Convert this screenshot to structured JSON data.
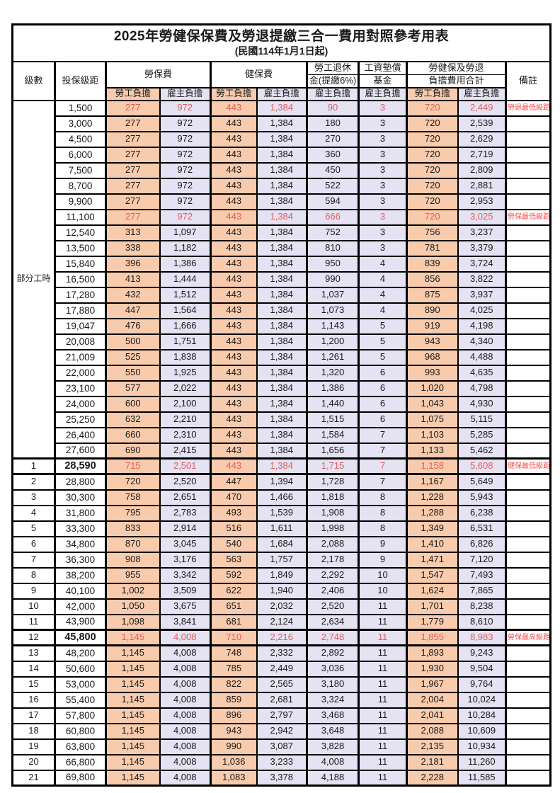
{
  "title": "2025年勞健保保費及勞退提繳三合一費用對照參考用表",
  "subtitle": "(民國114年1月1日起)",
  "columns": {
    "level": "級數",
    "bracket": "投保級距",
    "labor_insurance": "勞保費",
    "health_insurance": "健保費",
    "pension_line1": "勞工退休",
    "pension_line2": "金(提繳6%)",
    "wage_arrears_line1": "工資墊償",
    "wage_arrears_line2": "基金",
    "total_line1": "勞健保及勞退",
    "total_line2": "負擔費用合計",
    "remark": "備註",
    "employee_share": "勞工負擔",
    "employer_share": "雇主負擔"
  },
  "part_time_group": {
    "label": "部分工時",
    "row_span": 23
  },
  "colors": {
    "employee_bg": "#F8CBAD",
    "employer_bg": "#E4E2F3",
    "highlight_text": "#E0605E",
    "remark_text": "#F24E4E",
    "border": "#000000"
  },
  "rows": [
    {
      "level": "",
      "bracket": "1,500",
      "values": [
        "277",
        "972",
        "443",
        "1,384",
        "90",
        "3",
        "720",
        "2,449"
      ],
      "remark": "勞退最低級距",
      "highlight": true,
      "emphasis": false
    },
    {
      "level": "",
      "bracket": "3,000",
      "values": [
        "277",
        "972",
        "443",
        "1,384",
        "180",
        "3",
        "720",
        "2,539"
      ],
      "remark": "",
      "highlight": false,
      "emphasis": false
    },
    {
      "level": "",
      "bracket": "4,500",
      "values": [
        "277",
        "972",
        "443",
        "1,384",
        "270",
        "3",
        "720",
        "2,629"
      ],
      "remark": "",
      "highlight": false,
      "emphasis": false
    },
    {
      "level": "",
      "bracket": "6,000",
      "values": [
        "277",
        "972",
        "443",
        "1,384",
        "360",
        "3",
        "720",
        "2,719"
      ],
      "remark": "",
      "highlight": false,
      "emphasis": false
    },
    {
      "level": "",
      "bracket": "7,500",
      "values": [
        "277",
        "972",
        "443",
        "1,384",
        "450",
        "3",
        "720",
        "2,809"
      ],
      "remark": "",
      "highlight": false,
      "emphasis": false
    },
    {
      "level": "",
      "bracket": "8,700",
      "values": [
        "277",
        "972",
        "443",
        "1,384",
        "522",
        "3",
        "720",
        "2,881"
      ],
      "remark": "",
      "highlight": false,
      "emphasis": false
    },
    {
      "level": "",
      "bracket": "9,900",
      "values": [
        "277",
        "972",
        "443",
        "1,384",
        "594",
        "3",
        "720",
        "2,953"
      ],
      "remark": "",
      "highlight": false,
      "emphasis": false
    },
    {
      "level": "",
      "bracket": "11,100",
      "values": [
        "277",
        "972",
        "443",
        "1,384",
        "666",
        "3",
        "720",
        "3,025"
      ],
      "remark": "勞保最低級距",
      "highlight": true,
      "emphasis": false
    },
    {
      "level": "",
      "bracket": "12,540",
      "values": [
        "313",
        "1,097",
        "443",
        "1,384",
        "752",
        "3",
        "756",
        "3,237"
      ],
      "remark": "",
      "highlight": false,
      "emphasis": false
    },
    {
      "level": "",
      "bracket": "13,500",
      "values": [
        "338",
        "1,182",
        "443",
        "1,384",
        "810",
        "3",
        "781",
        "3,379"
      ],
      "remark": "",
      "highlight": false,
      "emphasis": false
    },
    {
      "level": "",
      "bracket": "15,840",
      "values": [
        "396",
        "1,386",
        "443",
        "1,384",
        "950",
        "4",
        "839",
        "3,724"
      ],
      "remark": "",
      "highlight": false,
      "emphasis": false
    },
    {
      "level": "",
      "bracket": "16,500",
      "values": [
        "413",
        "1,444",
        "443",
        "1,384",
        "990",
        "4",
        "856",
        "3,822"
      ],
      "remark": "",
      "highlight": false,
      "emphasis": false
    },
    {
      "level": "",
      "bracket": "17,280",
      "values": [
        "432",
        "1,512",
        "443",
        "1,384",
        "1,037",
        "4",
        "875",
        "3,937"
      ],
      "remark": "",
      "highlight": false,
      "emphasis": false
    },
    {
      "level": "",
      "bracket": "17,880",
      "values": [
        "447",
        "1,564",
        "443",
        "1,384",
        "1,073",
        "4",
        "890",
        "4,025"
      ],
      "remark": "",
      "highlight": false,
      "emphasis": false
    },
    {
      "level": "",
      "bracket": "19,047",
      "values": [
        "476",
        "1,666",
        "443",
        "1,384",
        "1,143",
        "5",
        "919",
        "4,198"
      ],
      "remark": "",
      "highlight": false,
      "emphasis": false
    },
    {
      "level": "",
      "bracket": "20,008",
      "values": [
        "500",
        "1,751",
        "443",
        "1,384",
        "1,200",
        "5",
        "943",
        "4,340"
      ],
      "remark": "",
      "highlight": false,
      "emphasis": false
    },
    {
      "level": "",
      "bracket": "21,009",
      "values": [
        "525",
        "1,838",
        "443",
        "1,384",
        "1,261",
        "5",
        "968",
        "4,488"
      ],
      "remark": "",
      "highlight": false,
      "emphasis": false
    },
    {
      "level": "",
      "bracket": "22,000",
      "values": [
        "550",
        "1,925",
        "443",
        "1,384",
        "1,320",
        "6",
        "993",
        "4,635"
      ],
      "remark": "",
      "highlight": false,
      "emphasis": false
    },
    {
      "level": "",
      "bracket": "23,100",
      "values": [
        "577",
        "2,022",
        "443",
        "1,384",
        "1,386",
        "6",
        "1,020",
        "4,798"
      ],
      "remark": "",
      "highlight": false,
      "emphasis": false
    },
    {
      "level": "",
      "bracket": "24,000",
      "values": [
        "600",
        "2,100",
        "443",
        "1,384",
        "1,440",
        "6",
        "1,043",
        "4,930"
      ],
      "remark": "",
      "highlight": false,
      "emphasis": false
    },
    {
      "level": "",
      "bracket": "25,250",
      "values": [
        "632",
        "2,210",
        "443",
        "1,384",
        "1,515",
        "6",
        "1,075",
        "5,115"
      ],
      "remark": "",
      "highlight": false,
      "emphasis": false
    },
    {
      "level": "",
      "bracket": "26,400",
      "values": [
        "660",
        "2,310",
        "443",
        "1,384",
        "1,584",
        "7",
        "1,103",
        "5,285"
      ],
      "remark": "",
      "highlight": false,
      "emphasis": false
    },
    {
      "level": "",
      "bracket": "27,600",
      "values": [
        "690",
        "2,415",
        "443",
        "1,384",
        "1,656",
        "7",
        "1,133",
        "5,462"
      ],
      "remark": "",
      "highlight": false,
      "emphasis": false
    },
    {
      "level": "1",
      "bracket": "28,590",
      "values": [
        "715",
        "2,501",
        "443",
        "1,384",
        "1,715",
        "7",
        "1,158",
        "5,608"
      ],
      "remark": "健保最低級距",
      "highlight": true,
      "emphasis": true
    },
    {
      "level": "2",
      "bracket": "28,800",
      "values": [
        "720",
        "2,520",
        "447",
        "1,394",
        "1,728",
        "7",
        "1,167",
        "5,649"
      ],
      "remark": "",
      "highlight": false,
      "emphasis": false
    },
    {
      "level": "3",
      "bracket": "30,300",
      "values": [
        "758",
        "2,651",
        "470",
        "1,466",
        "1,818",
        "8",
        "1,228",
        "5,943"
      ],
      "remark": "",
      "highlight": false,
      "emphasis": false
    },
    {
      "level": "4",
      "bracket": "31,800",
      "values": [
        "795",
        "2,783",
        "493",
        "1,539",
        "1,908",
        "8",
        "1,288",
        "6,238"
      ],
      "remark": "",
      "highlight": false,
      "emphasis": false
    },
    {
      "level": "5",
      "bracket": "33,300",
      "values": [
        "833",
        "2,914",
        "516",
        "1,611",
        "1,998",
        "8",
        "1,349",
        "6,531"
      ],
      "remark": "",
      "highlight": false,
      "emphasis": false
    },
    {
      "level": "6",
      "bracket": "34,800",
      "values": [
        "870",
        "3,045",
        "540",
        "1,684",
        "2,088",
        "9",
        "1,410",
        "6,826"
      ],
      "remark": "",
      "highlight": false,
      "emphasis": false
    },
    {
      "level": "7",
      "bracket": "36,300",
      "values": [
        "908",
        "3,176",
        "563",
        "1,757",
        "2,178",
        "9",
        "1,471",
        "7,120"
      ],
      "remark": "",
      "highlight": false,
      "emphasis": false
    },
    {
      "level": "8",
      "bracket": "38,200",
      "values": [
        "955",
        "3,342",
        "592",
        "1,849",
        "2,292",
        "10",
        "1,547",
        "7,493"
      ],
      "remark": "",
      "highlight": false,
      "emphasis": false
    },
    {
      "level": "9",
      "bracket": "40,100",
      "values": [
        "1,002",
        "3,509",
        "622",
        "1,940",
        "2,406",
        "10",
        "1,624",
        "7,865"
      ],
      "remark": "",
      "highlight": false,
      "emphasis": false
    },
    {
      "level": "10",
      "bracket": "42,000",
      "values": [
        "1,050",
        "3,675",
        "651",
        "2,032",
        "2,520",
        "11",
        "1,701",
        "8,238"
      ],
      "remark": "",
      "highlight": false,
      "emphasis": false
    },
    {
      "level": "11",
      "bracket": "43,900",
      "values": [
        "1,098",
        "3,841",
        "681",
        "2,124",
        "2,634",
        "11",
        "1,779",
        "8,610"
      ],
      "remark": "",
      "highlight": false,
      "emphasis": false
    },
    {
      "level": "12",
      "bracket": "45,800",
      "values": [
        "1,145",
        "4,008",
        "710",
        "2,216",
        "2,748",
        "11",
        "1,855",
        "8,983"
      ],
      "remark": "勞保最高級距",
      "highlight": true,
      "emphasis": true
    },
    {
      "level": "13",
      "bracket": "48,200",
      "values": [
        "1,145",
        "4,008",
        "748",
        "2,332",
        "2,892",
        "11",
        "1,893",
        "9,243"
      ],
      "remark": "",
      "highlight": false,
      "emphasis": false
    },
    {
      "level": "14",
      "bracket": "50,600",
      "values": [
        "1,145",
        "4,008",
        "785",
        "2,449",
        "3,036",
        "11",
        "1,930",
        "9,504"
      ],
      "remark": "",
      "highlight": false,
      "emphasis": false
    },
    {
      "level": "15",
      "bracket": "53,000",
      "values": [
        "1,145",
        "4,008",
        "822",
        "2,565",
        "3,180",
        "11",
        "1,967",
        "9,764"
      ],
      "remark": "",
      "highlight": false,
      "emphasis": false
    },
    {
      "level": "16",
      "bracket": "55,400",
      "values": [
        "1,145",
        "4,008",
        "859",
        "2,681",
        "3,324",
        "11",
        "2,004",
        "10,024"
      ],
      "remark": "",
      "highlight": false,
      "emphasis": false
    },
    {
      "level": "17",
      "bracket": "57,800",
      "values": [
        "1,145",
        "4,008",
        "896",
        "2,797",
        "3,468",
        "11",
        "2,041",
        "10,284"
      ],
      "remark": "",
      "highlight": false,
      "emphasis": false
    },
    {
      "level": "18",
      "bracket": "60,800",
      "values": [
        "1,145",
        "4,008",
        "943",
        "2,942",
        "3,648",
        "11",
        "2,088",
        "10,609"
      ],
      "remark": "",
      "highlight": false,
      "emphasis": false
    },
    {
      "level": "19",
      "bracket": "63,800",
      "values": [
        "1,145",
        "4,008",
        "990",
        "3,087",
        "3,828",
        "11",
        "2,135",
        "10,934"
      ],
      "remark": "",
      "highlight": false,
      "emphasis": false
    },
    {
      "level": "20",
      "bracket": "66,800",
      "values": [
        "1,145",
        "4,008",
        "1,036",
        "3,233",
        "4,008",
        "11",
        "2,181",
        "11,260"
      ],
      "remark": "",
      "highlight": false,
      "emphasis": false
    },
    {
      "level": "21",
      "bracket": "69,800",
      "values": [
        "1,145",
        "4,008",
        "1,083",
        "3,378",
        "4,188",
        "11",
        "2,228",
        "11,585"
      ],
      "remark": "",
      "highlight": false,
      "emphasis": false
    }
  ]
}
